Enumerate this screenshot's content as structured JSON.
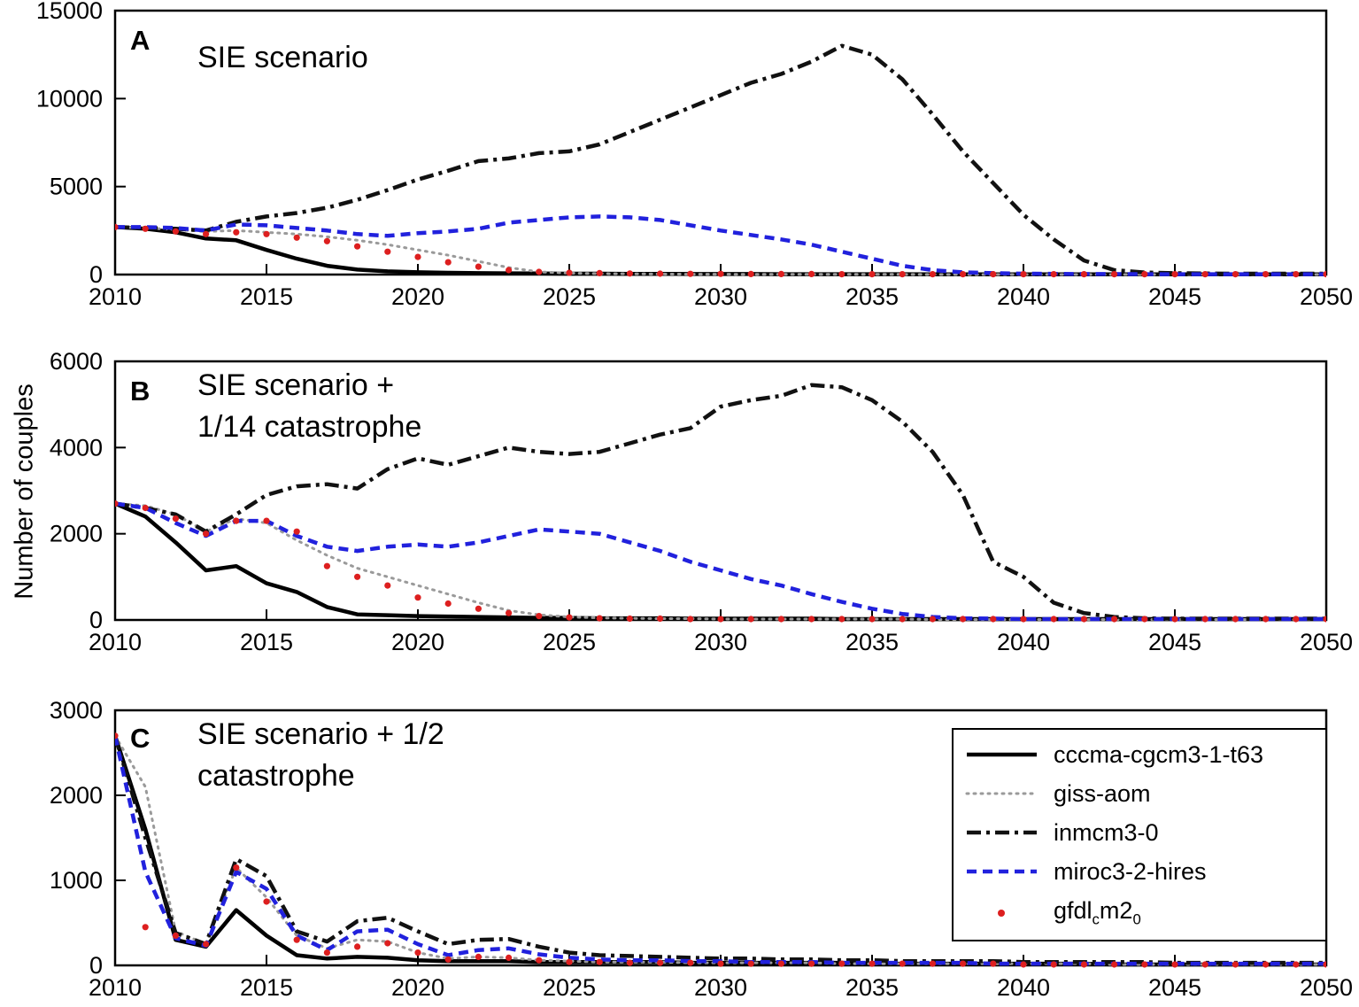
{
  "figure": {
    "ylabel": "Number of couples",
    "background": "#ffffff",
    "axis_color": "#000000"
  },
  "colors": {
    "solid_black": "#000000",
    "dotted_gray": "#9a9a9a",
    "dashdot_black": "#111111",
    "dashed_blue": "#2121dd",
    "red_dot": "#dd1f1f"
  },
  "legend": {
    "entries": [
      {
        "label": "cccma-cgcm3-1-t63",
        "style": "solid-black"
      },
      {
        "label": "giss-aom",
        "style": "dotted-gray"
      },
      {
        "label": "inmcm3-0",
        "style": "dashdot-black"
      },
      {
        "label": "miroc3-2-hires",
        "style": "dashed-blue"
      },
      {
        "label": "gfdl_cm2_0",
        "style": "red-dots",
        "label_parts": {
          "p1": "gfdl",
          "sub1": "c",
          "p2": "m2",
          "sub2": "0"
        }
      }
    ]
  },
  "chart_data": [
    {
      "type": "line",
      "panel_letter": "A",
      "title_line1": "SIE scenario",
      "title_line2": "",
      "xlim": [
        2010,
        2050
      ],
      "ylim": [
        0,
        15000
      ],
      "xticks": [
        2010,
        2015,
        2020,
        2025,
        2030,
        2035,
        2040,
        2045,
        2050
      ],
      "yticks": [
        0,
        5000,
        10000,
        15000
      ],
      "x_start": 2010,
      "x_step": 1,
      "series": [
        {
          "name": "cccma-cgcm3-1-t63",
          "style": "solid-black",
          "values": [
            2700,
            2600,
            2400,
            2050,
            1950,
            1400,
            900,
            500,
            280,
            180,
            130,
            100,
            80,
            70,
            60,
            50,
            50,
            40,
            40,
            30,
            30,
            30,
            20,
            20,
            20,
            20,
            20,
            10,
            10,
            10,
            10,
            10,
            10,
            10,
            10,
            10,
            10,
            10,
            10,
            10,
            10
          ]
        },
        {
          "name": "giss-aom",
          "style": "dotted-gray",
          "values": [
            2700,
            2650,
            2550,
            2450,
            2500,
            2400,
            2300,
            2150,
            1950,
            1700,
            1400,
            1100,
            750,
            400,
            150,
            80,
            50,
            40,
            30,
            20,
            20,
            10,
            10,
            10,
            10,
            10,
            10,
            0,
            0,
            0,
            0,
            0,
            0,
            0,
            0,
            0,
            0,
            0,
            0,
            0,
            0
          ]
        },
        {
          "name": "inmcm3-0",
          "style": "dashdot-black",
          "values": [
            2700,
            2650,
            2600,
            2500,
            3000,
            3300,
            3500,
            3800,
            4250,
            4800,
            5400,
            5900,
            6450,
            6600,
            6900,
            7000,
            7400,
            8100,
            8800,
            9500,
            10200,
            10900,
            11400,
            12100,
            13000,
            12500,
            11100,
            9100,
            7000,
            5200,
            3400,
            2000,
            800,
            250,
            120,
            80,
            60,
            50,
            50,
            50,
            50
          ]
        },
        {
          "name": "miroc3-2-hires",
          "style": "dashed-blue",
          "values": [
            2700,
            2700,
            2650,
            2500,
            2850,
            2800,
            2650,
            2500,
            2300,
            2200,
            2350,
            2450,
            2600,
            2950,
            3100,
            3250,
            3300,
            3250,
            3100,
            2800,
            2500,
            2250,
            2000,
            1700,
            1300,
            900,
            500,
            250,
            130,
            80,
            50,
            40,
            30,
            30,
            20,
            20,
            20,
            20,
            20,
            20,
            20
          ]
        },
        {
          "name": "gfdl_cm2_0",
          "style": "red-dots",
          "values": [
            2700,
            2600,
            2450,
            2300,
            2400,
            2300,
            2100,
            1900,
            1600,
            1300,
            1000,
            700,
            450,
            250,
            150,
            100,
            80,
            60,
            50,
            40,
            40,
            30,
            30,
            30,
            20,
            20,
            20,
            20,
            20,
            20,
            20,
            20,
            20,
            20,
            20,
            20,
            20,
            20,
            20,
            20,
            20
          ]
        }
      ]
    },
    {
      "type": "line",
      "panel_letter": "B",
      "title_line1": "SIE scenario +",
      "title_line2": "1/14 catastrophe",
      "xlim": [
        2010,
        2050
      ],
      "ylim": [
        0,
        6000
      ],
      "xticks": [
        2010,
        2015,
        2020,
        2025,
        2030,
        2035,
        2040,
        2045,
        2050
      ],
      "yticks": [
        0,
        2000,
        4000,
        6000
      ],
      "x_start": 2010,
      "x_step": 1,
      "series": [
        {
          "name": "cccma-cgcm3-1-t63",
          "style": "solid-black",
          "values": [
            2700,
            2400,
            1800,
            1150,
            1250,
            850,
            650,
            300,
            130,
            110,
            90,
            80,
            70,
            60,
            50,
            50,
            40,
            40,
            40,
            30,
            30,
            30,
            30,
            30,
            20,
            20,
            20,
            20,
            20,
            20,
            20,
            20,
            20,
            20,
            20,
            20,
            20,
            20,
            20,
            20,
            20
          ]
        },
        {
          "name": "giss-aom",
          "style": "dotted-gray",
          "values": [
            2700,
            2650,
            2450,
            2050,
            2350,
            2250,
            1850,
            1500,
            1200,
            1000,
            800,
            600,
            400,
            220,
            120,
            70,
            50,
            40,
            30,
            30,
            20,
            20,
            20,
            20,
            20,
            20,
            20,
            10,
            10,
            10,
            10,
            10,
            10,
            10,
            10,
            10,
            10,
            10,
            10,
            10,
            10
          ]
        },
        {
          "name": "inmcm3-0",
          "style": "dashdot-black",
          "values": [
            2700,
            2600,
            2450,
            2050,
            2450,
            2900,
            3100,
            3150,
            3050,
            3500,
            3750,
            3600,
            3800,
            4000,
            3900,
            3850,
            3900,
            4100,
            4300,
            4450,
            4950,
            5100,
            5200,
            5450,
            5400,
            5100,
            4600,
            3900,
            2900,
            1350,
            1000,
            400,
            160,
            70,
            40,
            30,
            30,
            30,
            30,
            30,
            30
          ]
        },
        {
          "name": "miroc3-2-hires",
          "style": "dashed-blue",
          "values": [
            2700,
            2600,
            2250,
            1950,
            2300,
            2300,
            1950,
            1700,
            1600,
            1700,
            1750,
            1700,
            1800,
            1950,
            2100,
            2050,
            2000,
            1800,
            1600,
            1350,
            1150,
            950,
            800,
            600,
            420,
            260,
            140,
            70,
            40,
            30,
            20,
            20,
            20,
            20,
            20,
            20,
            20,
            20,
            20,
            20,
            20
          ]
        },
        {
          "name": "gfdl_cm2_0",
          "style": "red-dots",
          "values": [
            2700,
            2600,
            2350,
            2000,
            2300,
            2300,
            2050,
            1250,
            1000,
            800,
            520,
            380,
            260,
            160,
            90,
            60,
            40,
            30,
            30,
            20,
            20,
            20,
            20,
            20,
            20,
            20,
            20,
            20,
            20,
            20,
            20,
            20,
            20,
            20,
            20,
            20,
            20,
            20,
            20,
            20,
            20
          ]
        }
      ]
    },
    {
      "type": "line",
      "panel_letter": "C",
      "title_line1": "SIE scenario + 1/2",
      "title_line2": "catastrophe",
      "xlim": [
        2010,
        2050
      ],
      "ylim": [
        0,
        3000
      ],
      "xticks": [
        2010,
        2015,
        2020,
        2025,
        2030,
        2035,
        2040,
        2045,
        2050
      ],
      "yticks": [
        0,
        1000,
        2000,
        3000
      ],
      "x_start": 2010,
      "x_step": 1,
      "series": [
        {
          "name": "cccma-cgcm3-1-t63",
          "style": "solid-black",
          "values": [
            2700,
            1600,
            300,
            220,
            650,
            350,
            120,
            80,
            100,
            90,
            60,
            50,
            50,
            50,
            40,
            40,
            40,
            40,
            40,
            30,
            30,
            30,
            30,
            30,
            30,
            20,
            20,
            20,
            20,
            20,
            20,
            20,
            20,
            10,
            10,
            10,
            10,
            10,
            10,
            10,
            10
          ]
        },
        {
          "name": "giss-aom",
          "style": "dotted-gray",
          "values": [
            2700,
            2100,
            400,
            250,
            1150,
            800,
            350,
            200,
            300,
            280,
            150,
            80,
            100,
            90,
            60,
            50,
            40,
            40,
            40,
            30,
            30,
            30,
            30,
            30,
            20,
            20,
            20,
            20,
            20,
            20,
            20,
            20,
            20,
            10,
            10,
            10,
            10,
            10,
            10,
            10,
            10
          ]
        },
        {
          "name": "inmcm3-0",
          "style": "dashdot-black",
          "values": [
            2700,
            1500,
            380,
            250,
            1250,
            1050,
            400,
            280,
            520,
            560,
            400,
            250,
            300,
            310,
            220,
            150,
            120,
            110,
            100,
            90,
            80,
            80,
            70,
            70,
            60,
            60,
            50,
            50,
            50,
            50,
            40,
            40,
            40,
            40,
            40,
            30,
            30,
            30,
            30,
            30,
            30
          ]
        },
        {
          "name": "miroc3-2-hires",
          "style": "dashed-blue",
          "values": [
            2700,
            1100,
            320,
            230,
            1100,
            900,
            350,
            180,
            400,
            420,
            250,
            120,
            180,
            200,
            130,
            90,
            70,
            60,
            60,
            50,
            50,
            40,
            40,
            40,
            30,
            30,
            30,
            30,
            30,
            20,
            20,
            20,
            20,
            20,
            20,
            20,
            20,
            20,
            20,
            20,
            20
          ]
        },
        {
          "name": "gfdl_cm2_0",
          "style": "red-dots",
          "values": [
            2700,
            450,
            350,
            250,
            1150,
            750,
            300,
            150,
            220,
            260,
            150,
            70,
            100,
            90,
            60,
            40,
            40,
            30,
            30,
            30,
            20,
            20,
            20,
            20,
            20,
            20,
            20,
            20,
            20,
            20,
            10,
            10,
            10,
            10,
            10,
            10,
            10,
            10,
            10,
            10,
            10
          ]
        }
      ]
    }
  ]
}
